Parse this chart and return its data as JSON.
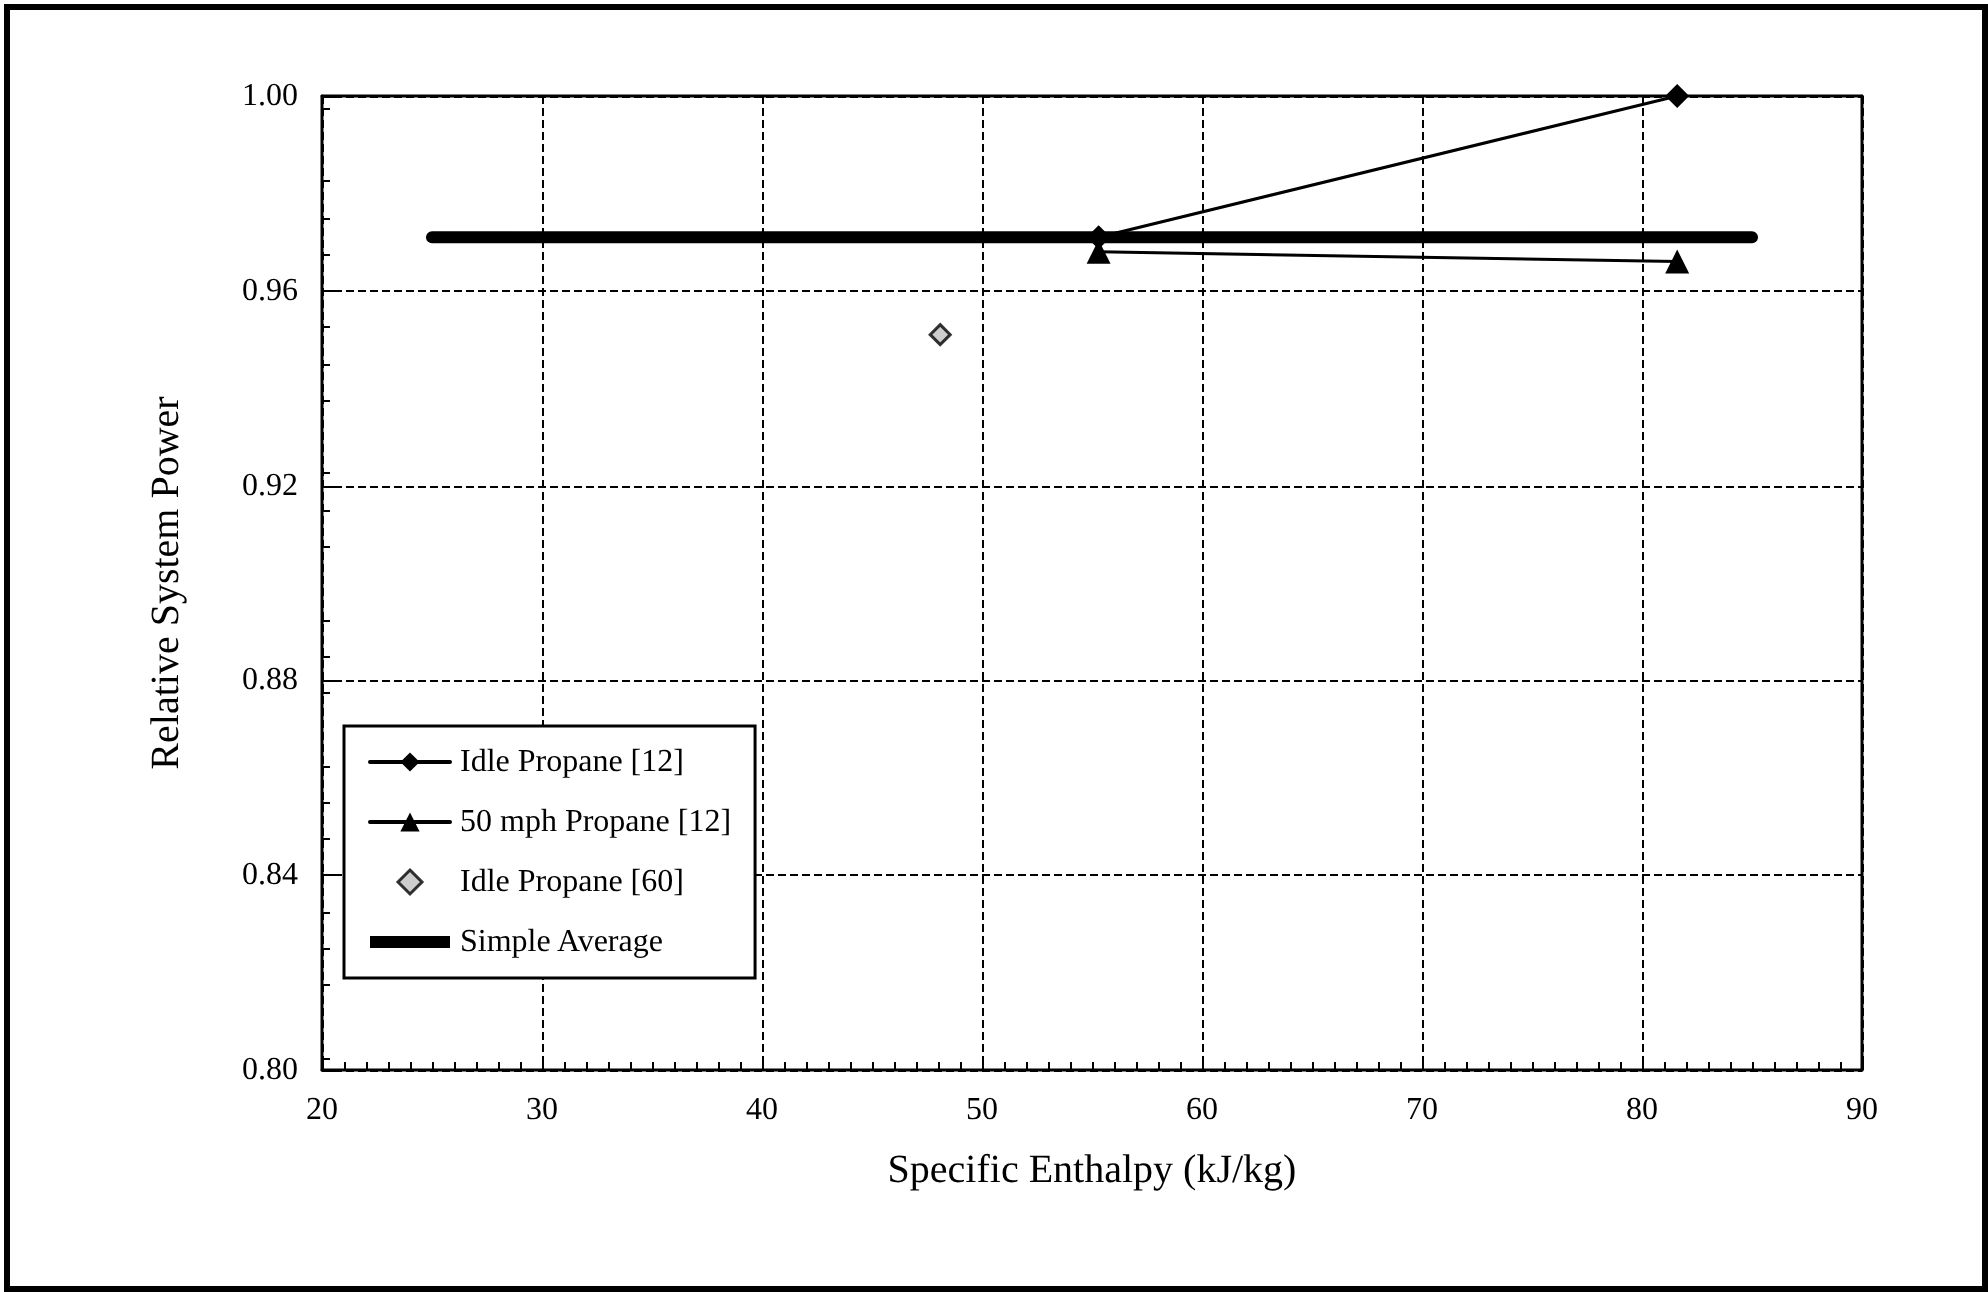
{
  "chart_data": {
    "type": "line",
    "xlabel": "Specific Enthalpy (kJ/kg)",
    "ylabel": "Relative System Power",
    "xlim": [
      20,
      90
    ],
    "xticks": [
      20,
      30,
      40,
      50,
      60,
      70,
      80,
      90
    ],
    "ylim": [
      0.8,
      1.0
    ],
    "yticks": [
      {
        "value": 0.8,
        "label": "0.80"
      },
      {
        "value": 0.84,
        "label": "0.84"
      },
      {
        "value": 0.88,
        "label": "0.88"
      },
      {
        "value": 0.92,
        "label": "0.92"
      },
      {
        "value": 0.96,
        "label": "0.96"
      },
      {
        "value": 1.0,
        "label": "1.00"
      }
    ],
    "grid": true,
    "legend": "bottom left",
    "series": [
      {
        "name": "Idle Propane [12]",
        "marker": "diamond",
        "color": "#000000",
        "x": [
          55.3,
          81.6
        ],
        "values": [
          0.971,
          1.0
        ]
      },
      {
        "name": "50 mph Propane [12]",
        "marker": "triangle",
        "color": "#000000",
        "x": [
          55.3,
          81.6
        ],
        "values": [
          0.968,
          0.966
        ]
      },
      {
        "name": "Idle Propane [60]",
        "type": "scatter",
        "marker": "diamond",
        "color": "#c0c0c0",
        "x": [
          48.1
        ],
        "values": [
          0.951
        ]
      },
      {
        "name": "Simple Average",
        "marker": "none",
        "color": "#000000",
        "x": [
          25,
          85
        ],
        "values": [
          0.971,
          0.971
        ]
      }
    ]
  }
}
